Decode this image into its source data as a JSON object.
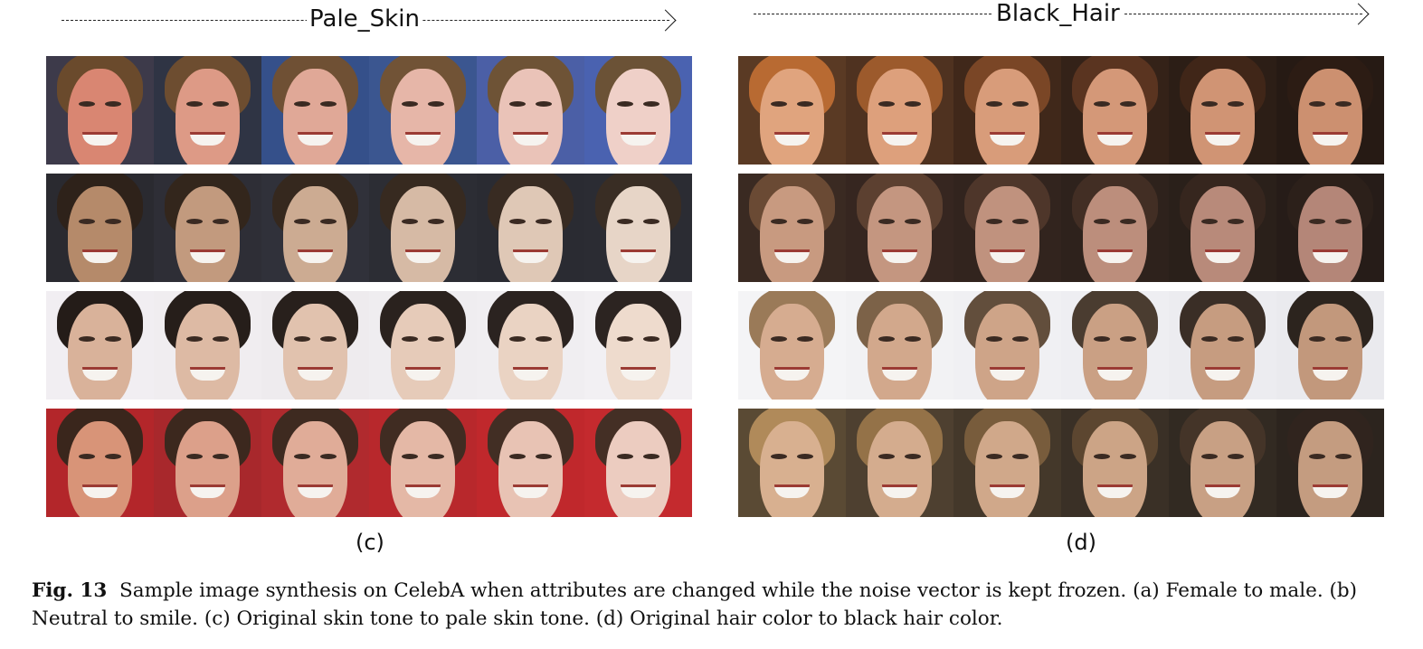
{
  "panel_c": {
    "attribute_label": "Pale_Skin",
    "sub_label": "(c)",
    "rows": [
      {
        "faces": [
          {
            "skin": "#d98672",
            "hair": "#6a4a2c",
            "bg": "#3d3a4a"
          },
          {
            "skin": "#dd9a86",
            "hair": "#6d4d30",
            "bg": "#2f3444"
          },
          {
            "skin": "#e0a897",
            "hair": "#6f5034",
            "bg": "#35508a"
          },
          {
            "skin": "#e6b6a8",
            "hair": "#715336",
            "bg": "#3b5690"
          },
          {
            "skin": "#eac3b8",
            "hair": "#6e5336",
            "bg": "#4b5fa6"
          },
          {
            "skin": "#efd0c8",
            "hair": "#6b5236",
            "bg": "#4a62b0"
          }
        ]
      },
      {
        "faces": [
          {
            "skin": "#b58a6a",
            "hair": "#2e221a",
            "bg": "#2a2a30"
          },
          {
            "skin": "#c29a7e",
            "hair": "#33261c",
            "bg": "#2e2e36"
          },
          {
            "skin": "#ccab92",
            "hair": "#35281e",
            "bg": "#30313a"
          },
          {
            "skin": "#d6baa5",
            "hair": "#372a20",
            "bg": "#2c2d34"
          },
          {
            "skin": "#dfc8b6",
            "hair": "#382b22",
            "bg": "#2a2b32"
          },
          {
            "skin": "#e7d5c7",
            "hair": "#392d24",
            "bg": "#2b2c33"
          }
        ]
      },
      {
        "faces": [
          {
            "skin": "#d9b29a",
            "hair": "#241c18",
            "bg": "#f1eef2"
          },
          {
            "skin": "#ddbaa4",
            "hair": "#261e1a",
            "bg": "#f0edf0"
          },
          {
            "skin": "#e1c2ae",
            "hair": "#28201c",
            "bg": "#eeebee"
          },
          {
            "skin": "#e6cbb9",
            "hair": "#2a221e",
            "bg": "#efedf0"
          },
          {
            "skin": "#ead3c3",
            "hair": "#2b2320",
            "bg": "#f0eef1"
          },
          {
            "skin": "#eedbcd",
            "hair": "#2c2421",
            "bg": "#f2f0f3"
          }
        ]
      },
      {
        "faces": [
          {
            "skin": "#d89478",
            "hair": "#3a261c",
            "bg": "#b3262a"
          },
          {
            "skin": "#dca08a",
            "hair": "#3c281e",
            "bg": "#a8282c"
          },
          {
            "skin": "#e0ac98",
            "hair": "#3e2a20",
            "bg": "#b02a2e"
          },
          {
            "skin": "#e4b8a6",
            "hair": "#402c22",
            "bg": "#b8282c"
          },
          {
            "skin": "#e8c3b4",
            "hair": "#422e24",
            "bg": "#c0282c"
          },
          {
            "skin": "#ecccc0",
            "hair": "#442f25",
            "bg": "#c42a2e"
          }
        ]
      }
    ]
  },
  "panel_d": {
    "attribute_label": "Black_Hair",
    "sub_label": "(d)",
    "rows": [
      {
        "faces": [
          {
            "skin": "#e0a47e",
            "hair": "#b86a32",
            "bg": "#5a3a24"
          },
          {
            "skin": "#dda07c",
            "hair": "#9c5a2c",
            "bg": "#4f3220"
          },
          {
            "skin": "#d89c7a",
            "hair": "#7a4626",
            "bg": "#40281a"
          },
          {
            "skin": "#d49878",
            "hair": "#5a3420",
            "bg": "#342218"
          },
          {
            "skin": "#d09474",
            "hair": "#402618",
            "bg": "#2c1e16"
          },
          {
            "skin": "#cc9070",
            "hair": "#2c1c14",
            "bg": "#261a14"
          }
        ]
      },
      {
        "faces": [
          {
            "skin": "#c89a80",
            "hair": "#6a4a34",
            "bg": "#3a2a22"
          },
          {
            "skin": "#c49680",
            "hair": "#5c4030",
            "bg": "#362620"
          },
          {
            "skin": "#c0927e",
            "hair": "#4e362a",
            "bg": "#32241e"
          },
          {
            "skin": "#bc8e7c",
            "hair": "#422e24",
            "bg": "#2e221c"
          },
          {
            "skin": "#b88a7a",
            "hair": "#36261e",
            "bg": "#2a201a"
          },
          {
            "skin": "#b48678",
            "hair": "#2c201a",
            "bg": "#261c18"
          }
        ]
      },
      {
        "faces": [
          {
            "skin": "#d6ac90",
            "hair": "#9a7a58",
            "bg": "#f4f4f6"
          },
          {
            "skin": "#d2a88c",
            "hair": "#7c6248",
            "bg": "#f2f2f4"
          },
          {
            "skin": "#cea488",
            "hair": "#624e3c",
            "bg": "#f0f0f3"
          },
          {
            "skin": "#caa084",
            "hair": "#4a3c30",
            "bg": "#eeeef2"
          },
          {
            "skin": "#c69c80",
            "hair": "#3a2e26",
            "bg": "#ececf0"
          },
          {
            "skin": "#c2987c",
            "hair": "#2c241e",
            "bg": "#eaeaee"
          }
        ]
      },
      {
        "faces": [
          {
            "skin": "#d8b090",
            "hair": "#b08a5a",
            "bg": "#5a4a34"
          },
          {
            "skin": "#d4ac8e",
            "hair": "#947248",
            "bg": "#4e4030"
          },
          {
            "skin": "#d0a88a",
            "hair": "#785c3c",
            "bg": "#44382a"
          },
          {
            "skin": "#cca486",
            "hair": "#5c4630",
            "bg": "#3a3026"
          },
          {
            "skin": "#c8a084",
            "hair": "#443428",
            "bg": "#322a22"
          },
          {
            "skin": "#c49c80",
            "hair": "#30241e",
            "bg": "#2c241e"
          }
        ]
      }
    ]
  },
  "caption": {
    "fig_label": "Fig. 13",
    "text": "Sample image synthesis on CelebA when attributes are changed while the noise vector is kept frozen. (a) Female to male. (b) Neutral to smile. (c) Original skin tone to pale skin tone. (d) Original hair color to black hair color."
  }
}
